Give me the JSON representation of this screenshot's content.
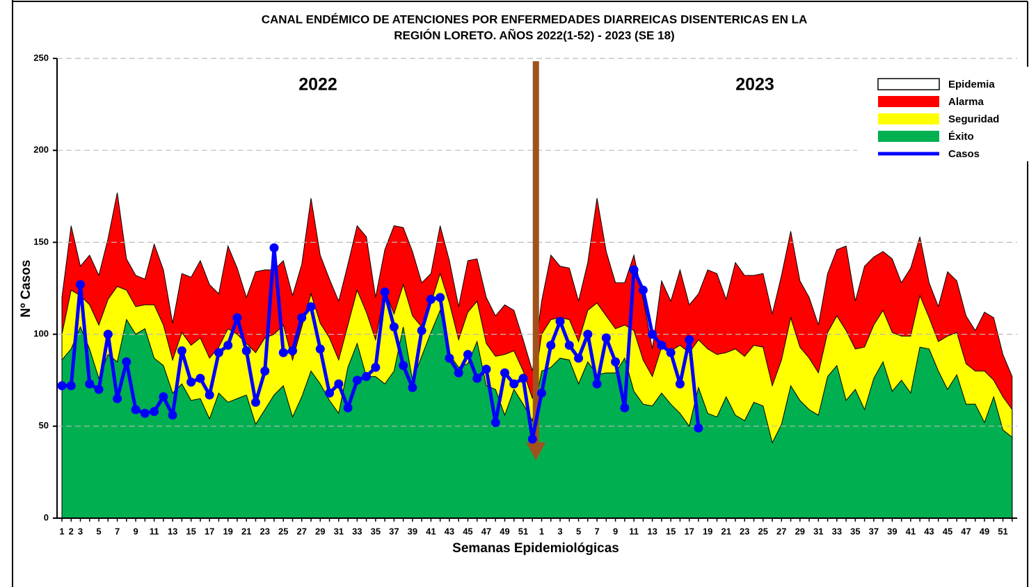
{
  "chart_data": {
    "type": "endemic-channel",
    "title": [
      "CANAL ENDÉMICO DE ATENCIONES POR ENFERMEDADES DIARREICAS DISENTERICAS EN LA",
      "REGIÓN LORETO.  AÑOS 2022(1-52) - 2023 (SE 18)"
    ],
    "x_label": "Semanas Epidemiológicas",
    "y_label": "Nº Casos",
    "annotations": [
      "2022",
      "2023"
    ],
    "categories": [
      "1",
      "2",
      "3",
      null,
      "5",
      null,
      "7",
      null,
      "9",
      null,
      "11",
      null,
      "13",
      null,
      "15",
      null,
      "17",
      null,
      "19",
      null,
      "21",
      null,
      "23",
      null,
      "25",
      null,
      "27",
      null,
      "29",
      null,
      "31",
      null,
      "33",
      null,
      "35",
      null,
      "37",
      null,
      "39",
      null,
      "41",
      null,
      "43",
      null,
      "45",
      null,
      "47",
      null,
      "49",
      null,
      "51",
      null,
      "1",
      null,
      "3",
      null,
      "5",
      null,
      "7",
      null,
      "9",
      null,
      "11",
      null,
      "13",
      null,
      "15",
      null,
      "17",
      null,
      "19",
      null,
      "21",
      null,
      "23",
      null,
      "25",
      null,
      "27",
      null,
      "29",
      null,
      "31",
      null,
      "33",
      null,
      "35",
      null,
      "37",
      null,
      "39",
      null,
      "41",
      null,
      "43",
      null,
      "45",
      null,
      "47",
      null,
      "49",
      null,
      "51",
      null
    ],
    "ylim": [
      0,
      250
    ],
    "yticks": [
      0,
      50,
      100,
      150,
      200,
      250
    ],
    "grid": true,
    "legend_position": "upper right",
    "epidemia": {
      "name": "Epidemia",
      "color": "#ffffff"
    },
    "series": [
      {
        "name": "Alarma",
        "color": "#ff0000",
        "values": [
          120,
          159,
          137,
          143,
          132,
          152,
          177,
          141,
          132,
          130,
          149,
          135,
          106,
          133,
          131,
          140,
          127,
          122,
          148,
          136,
          120,
          134,
          135,
          135,
          140,
          121,
          138,
          174,
          143,
          130,
          118,
          138,
          159,
          153,
          120,
          146,
          159,
          158,
          145,
          128,
          133,
          159,
          140,
          115,
          140,
          141,
          120,
          110,
          116,
          113,
          97,
          80,
          118,
          143,
          137,
          136,
          118,
          139,
          174,
          145,
          128,
          128,
          143,
          119,
          92,
          129,
          118,
          135,
          116,
          122,
          135,
          133,
          119,
          139,
          132,
          132,
          133,
          111,
          132,
          156,
          129,
          120,
          105,
          133,
          146,
          148,
          118,
          137,
          142,
          145,
          141,
          128,
          136,
          153,
          128,
          115,
          134,
          129,
          110,
          102,
          112,
          109,
          89,
          77
        ]
      },
      {
        "name": "Seguridad",
        "color": "#ffff00",
        "values": [
          100,
          124,
          121,
          116,
          105,
          119,
          126,
          124,
          115,
          116,
          116,
          105,
          86,
          101,
          94,
          98,
          87,
          93,
          103,
          100,
          95,
          90,
          98,
          100,
          105,
          86,
          104,
          122,
          106,
          98,
          86,
          105,
          124,
          112,
          97,
          124,
          111,
          127,
          110,
          104,
          117,
          133,
          117,
          97,
          112,
          118,
          95,
          88,
          89,
          91,
          80,
          65,
          100,
          108,
          109,
          108,
          96,
          113,
          117,
          110,
          103,
          105,
          102,
          86,
          77,
          93,
          91,
          94,
          90,
          97,
          92,
          89,
          90,
          92,
          88,
          94,
          93,
          72,
          86,
          109,
          93,
          87,
          79,
          101,
          110,
          102,
          92,
          93,
          105,
          113,
          101,
          99,
          99,
          121,
          109,
          96,
          99,
          101,
          84,
          80,
          80,
          75,
          66,
          59
        ]
      },
      {
        "name": "Éxito",
        "color": "#00b050",
        "values": [
          86,
          92,
          104,
          92,
          76,
          89,
          85,
          108,
          100,
          103,
          87,
          83,
          68,
          73,
          64,
          65,
          54,
          68,
          63,
          65,
          67,
          51,
          59,
          67,
          72,
          55,
          66,
          80,
          73,
          64,
          57,
          82,
          95,
          77,
          77,
          73,
          80,
          104,
          75,
          88,
          101,
          113,
          89,
          82,
          84,
          96,
          72,
          70,
          56,
          70,
          62,
          53,
          80,
          82,
          87,
          86,
          73,
          85,
          78,
          79,
          79,
          87,
          69,
          62,
          61,
          68,
          62,
          57,
          50,
          71,
          57,
          55,
          66,
          56,
          53,
          63,
          61,
          41,
          51,
          72,
          64,
          59,
          56,
          77,
          83,
          64,
          70,
          59,
          76,
          85,
          69,
          75,
          68,
          93,
          92,
          80,
          70,
          78,
          62,
          62,
          52,
          66,
          48,
          44
        ]
      },
      {
        "name": "Casos",
        "color": "#0000ff",
        "values": [
          72,
          72,
          127,
          73,
          70,
          100,
          65,
          85,
          59,
          57,
          58,
          66,
          56,
          91,
          74,
          76,
          67,
          90,
          94,
          109,
          91,
          63,
          80,
          147,
          90,
          91,
          109,
          115,
          92,
          68,
          73,
          60,
          75,
          77,
          82,
          123,
          104,
          83,
          71,
          102,
          119,
          120,
          87,
          79,
          89,
          76,
          81,
          52,
          79,
          73,
          76,
          43,
          68,
          94,
          107,
          94,
          87,
          100,
          73,
          98,
          85,
          60,
          135,
          124,
          100,
          94,
          90,
          73,
          97,
          49,
          null,
          null,
          null,
          null,
          null,
          null,
          null,
          null,
          null,
          null,
          null,
          null,
          null,
          null,
          null,
          null,
          null,
          null,
          null,
          null,
          null,
          null,
          null,
          null,
          null,
          null,
          null,
          null,
          null,
          null,
          null,
          null,
          null,
          null
        ]
      }
    ]
  }
}
